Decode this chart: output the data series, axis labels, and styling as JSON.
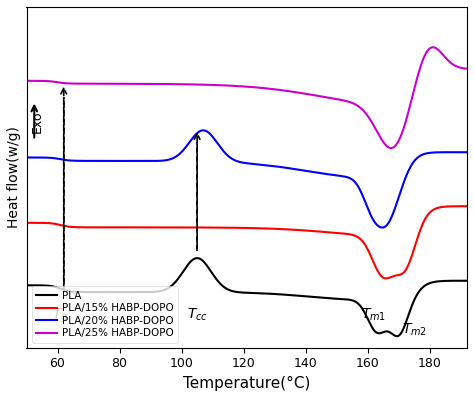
{
  "xlabel": "Temperature(°C)",
  "ylabel": "Heat flow(w/g)",
  "xlim": [
    50,
    192
  ],
  "ylim": [
    -0.8,
    5.2
  ],
  "exo_label": "Exo",
  "colors": {
    "PLA": "#000000",
    "PLA15": "#ff0000",
    "PLA20": "#0000ff",
    "PLA25": "#cc00cc"
  },
  "legend": [
    "PLA",
    "PLA/15% HABP-DOPO",
    "PLA/20% HABP-DOPO",
    "PLA/25% HABP-DOPO"
  ],
  "offsets": [
    0.0,
    1.1,
    2.25,
    3.6
  ],
  "Tg_x": 62,
  "Tcc_x": 105,
  "Tm1_x": 163,
  "Tm2_x": 173
}
